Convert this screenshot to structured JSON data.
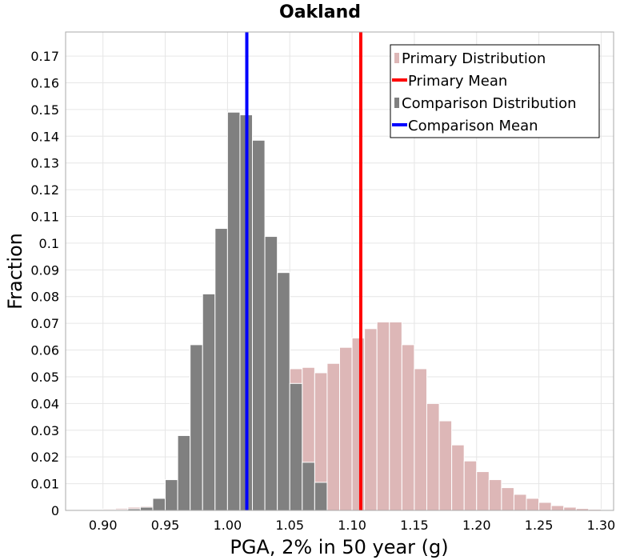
{
  "chart_data": {
    "type": "bar",
    "title": "Oakland",
    "xlabel": "PGA, 2% in 50 year (g)",
    "ylabel": "Fraction",
    "xlim": [
      0.87,
      1.31
    ],
    "ylim": [
      0,
      0.179
    ],
    "xticks": [
      "0.90",
      "0.95",
      "1.00",
      "1.05",
      "1.10",
      "1.15",
      "1.20",
      "1.25",
      "1.30"
    ],
    "yticks": [
      "0",
      "0.01",
      "0.02",
      "0.03",
      "0.04",
      "0.05",
      "0.06",
      "0.07",
      "0.08",
      "0.09",
      "0.1",
      "0.11",
      "0.12",
      "0.13",
      "0.14",
      "0.15",
      "0.16",
      "0.17"
    ],
    "grid": true,
    "legend_position": "top-right",
    "legend": [
      {
        "label": "Primary Distribution",
        "kind": "patch",
        "color": "#ddb7b7"
      },
      {
        "label": "Primary Mean",
        "kind": "line",
        "color": "#ff0000"
      },
      {
        "label": "Comparison Distribution",
        "kind": "patch",
        "color": "#808080"
      },
      {
        "label": "Comparison Mean",
        "kind": "line",
        "color": "#0000ff"
      }
    ],
    "series": [
      {
        "name": "Primary Distribution",
        "color": "#ddb7b7",
        "bin_width": 0.01,
        "x": [
          0.885,
          0.895,
          0.905,
          0.915,
          0.925,
          0.935,
          0.945,
          0.955,
          0.965,
          0.975,
          0.985,
          0.995,
          1.005,
          1.015,
          1.025,
          1.035,
          1.045,
          1.055,
          1.065,
          1.075,
          1.085,
          1.095,
          1.105,
          1.115,
          1.125,
          1.135,
          1.145,
          1.155,
          1.165,
          1.175,
          1.185,
          1.195,
          1.205,
          1.215,
          1.225,
          1.235,
          1.245,
          1.255,
          1.265,
          1.275,
          1.285,
          1.295
        ],
        "values": [
          0.0002,
          0.0003,
          0.0005,
          0.0008,
          0.0012,
          0.0016,
          0.0022,
          0.003,
          0.004,
          0.005,
          0.007,
          0.009,
          0.012,
          0.016,
          0.022,
          0.03,
          0.04,
          0.053,
          0.0535,
          0.0515,
          0.055,
          0.061,
          0.0645,
          0.068,
          0.0705,
          0.0705,
          0.062,
          0.053,
          0.04,
          0.0335,
          0.0245,
          0.0185,
          0.0145,
          0.0115,
          0.0085,
          0.006,
          0.0045,
          0.003,
          0.0018,
          0.0012,
          0.0007,
          0.0004
        ]
      },
      {
        "name": "Comparison Distribution",
        "color": "#808080",
        "bin_width": 0.01,
        "x": [
          0.905,
          0.915,
          0.925,
          0.935,
          0.945,
          0.955,
          0.965,
          0.975,
          0.985,
          0.995,
          1.005,
          1.015,
          1.025,
          1.035,
          1.045,
          1.055,
          1.065,
          1.075
        ],
        "values": [
          0.0002,
          0.0003,
          0.0006,
          0.0012,
          0.0045,
          0.0115,
          0.028,
          0.062,
          0.081,
          0.1055,
          0.149,
          0.148,
          0.1385,
          0.1025,
          0.089,
          0.0475,
          0.018,
          0.0105
        ]
      }
    ],
    "vlines": [
      {
        "name": "Primary Mean",
        "x": 1.107,
        "color": "#ff0000"
      },
      {
        "name": "Comparison Mean",
        "x": 1.0155,
        "color": "#0000ff"
      }
    ]
  }
}
